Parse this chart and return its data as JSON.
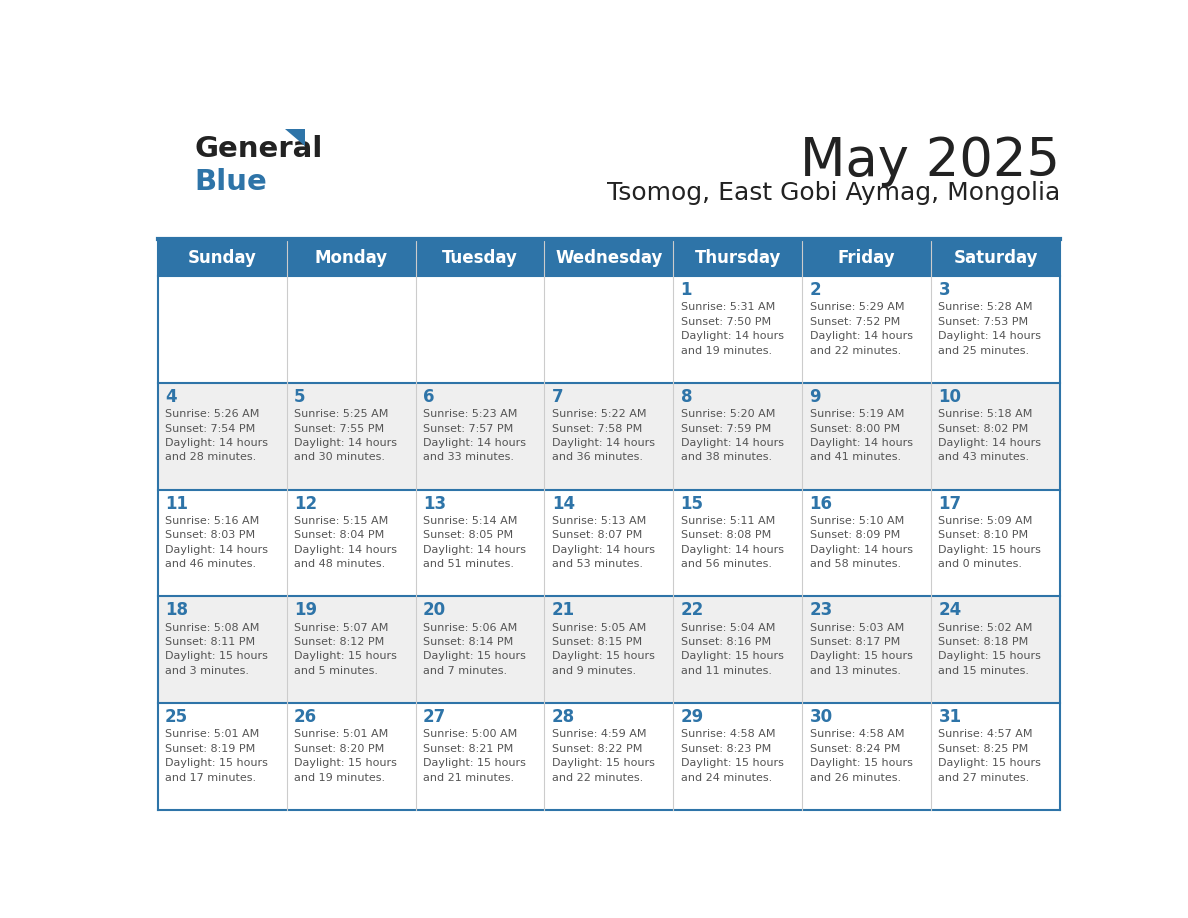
{
  "title": "May 2025",
  "subtitle": "Tsomog, East Gobi Aymag, Mongolia",
  "days_of_week": [
    "Sunday",
    "Monday",
    "Tuesday",
    "Wednesday",
    "Thursday",
    "Friday",
    "Saturday"
  ],
  "header_bg": "#2E74A8",
  "header_text": "#FFFFFF",
  "odd_row_bg": "#FFFFFF",
  "even_row_bg": "#EFEFEF",
  "day_num_color": "#2E74A8",
  "info_text_color": "#555555",
  "border_color": "#2E74A8",
  "cell_div_color": "#CCCCCC",
  "title_color": "#222222",
  "subtitle_color": "#222222",
  "logo_black": "#222222",
  "logo_blue": "#2E74A8",
  "weeks": [
    [
      {
        "day": "",
        "info": ""
      },
      {
        "day": "",
        "info": ""
      },
      {
        "day": "",
        "info": ""
      },
      {
        "day": "",
        "info": ""
      },
      {
        "day": "1",
        "info": "Sunrise: 5:31 AM\nSunset: 7:50 PM\nDaylight: 14 hours\nand 19 minutes."
      },
      {
        "day": "2",
        "info": "Sunrise: 5:29 AM\nSunset: 7:52 PM\nDaylight: 14 hours\nand 22 minutes."
      },
      {
        "day": "3",
        "info": "Sunrise: 5:28 AM\nSunset: 7:53 PM\nDaylight: 14 hours\nand 25 minutes."
      }
    ],
    [
      {
        "day": "4",
        "info": "Sunrise: 5:26 AM\nSunset: 7:54 PM\nDaylight: 14 hours\nand 28 minutes."
      },
      {
        "day": "5",
        "info": "Sunrise: 5:25 AM\nSunset: 7:55 PM\nDaylight: 14 hours\nand 30 minutes."
      },
      {
        "day": "6",
        "info": "Sunrise: 5:23 AM\nSunset: 7:57 PM\nDaylight: 14 hours\nand 33 minutes."
      },
      {
        "day": "7",
        "info": "Sunrise: 5:22 AM\nSunset: 7:58 PM\nDaylight: 14 hours\nand 36 minutes."
      },
      {
        "day": "8",
        "info": "Sunrise: 5:20 AM\nSunset: 7:59 PM\nDaylight: 14 hours\nand 38 minutes."
      },
      {
        "day": "9",
        "info": "Sunrise: 5:19 AM\nSunset: 8:00 PM\nDaylight: 14 hours\nand 41 minutes."
      },
      {
        "day": "10",
        "info": "Sunrise: 5:18 AM\nSunset: 8:02 PM\nDaylight: 14 hours\nand 43 minutes."
      }
    ],
    [
      {
        "day": "11",
        "info": "Sunrise: 5:16 AM\nSunset: 8:03 PM\nDaylight: 14 hours\nand 46 minutes."
      },
      {
        "day": "12",
        "info": "Sunrise: 5:15 AM\nSunset: 8:04 PM\nDaylight: 14 hours\nand 48 minutes."
      },
      {
        "day": "13",
        "info": "Sunrise: 5:14 AM\nSunset: 8:05 PM\nDaylight: 14 hours\nand 51 minutes."
      },
      {
        "day": "14",
        "info": "Sunrise: 5:13 AM\nSunset: 8:07 PM\nDaylight: 14 hours\nand 53 minutes."
      },
      {
        "day": "15",
        "info": "Sunrise: 5:11 AM\nSunset: 8:08 PM\nDaylight: 14 hours\nand 56 minutes."
      },
      {
        "day": "16",
        "info": "Sunrise: 5:10 AM\nSunset: 8:09 PM\nDaylight: 14 hours\nand 58 minutes."
      },
      {
        "day": "17",
        "info": "Sunrise: 5:09 AM\nSunset: 8:10 PM\nDaylight: 15 hours\nand 0 minutes."
      }
    ],
    [
      {
        "day": "18",
        "info": "Sunrise: 5:08 AM\nSunset: 8:11 PM\nDaylight: 15 hours\nand 3 minutes."
      },
      {
        "day": "19",
        "info": "Sunrise: 5:07 AM\nSunset: 8:12 PM\nDaylight: 15 hours\nand 5 minutes."
      },
      {
        "day": "20",
        "info": "Sunrise: 5:06 AM\nSunset: 8:14 PM\nDaylight: 15 hours\nand 7 minutes."
      },
      {
        "day": "21",
        "info": "Sunrise: 5:05 AM\nSunset: 8:15 PM\nDaylight: 15 hours\nand 9 minutes."
      },
      {
        "day": "22",
        "info": "Sunrise: 5:04 AM\nSunset: 8:16 PM\nDaylight: 15 hours\nand 11 minutes."
      },
      {
        "day": "23",
        "info": "Sunrise: 5:03 AM\nSunset: 8:17 PM\nDaylight: 15 hours\nand 13 minutes."
      },
      {
        "day": "24",
        "info": "Sunrise: 5:02 AM\nSunset: 8:18 PM\nDaylight: 15 hours\nand 15 minutes."
      }
    ],
    [
      {
        "day": "25",
        "info": "Sunrise: 5:01 AM\nSunset: 8:19 PM\nDaylight: 15 hours\nand 17 minutes."
      },
      {
        "day": "26",
        "info": "Sunrise: 5:01 AM\nSunset: 8:20 PM\nDaylight: 15 hours\nand 19 minutes."
      },
      {
        "day": "27",
        "info": "Sunrise: 5:00 AM\nSunset: 8:21 PM\nDaylight: 15 hours\nand 21 minutes."
      },
      {
        "day": "28",
        "info": "Sunrise: 4:59 AM\nSunset: 8:22 PM\nDaylight: 15 hours\nand 22 minutes."
      },
      {
        "day": "29",
        "info": "Sunrise: 4:58 AM\nSunset: 8:23 PM\nDaylight: 15 hours\nand 24 minutes."
      },
      {
        "day": "30",
        "info": "Sunrise: 4:58 AM\nSunset: 8:24 PM\nDaylight: 15 hours\nand 26 minutes."
      },
      {
        "day": "31",
        "info": "Sunrise: 4:57 AM\nSunset: 8:25 PM\nDaylight: 15 hours\nand 27 minutes."
      }
    ]
  ]
}
